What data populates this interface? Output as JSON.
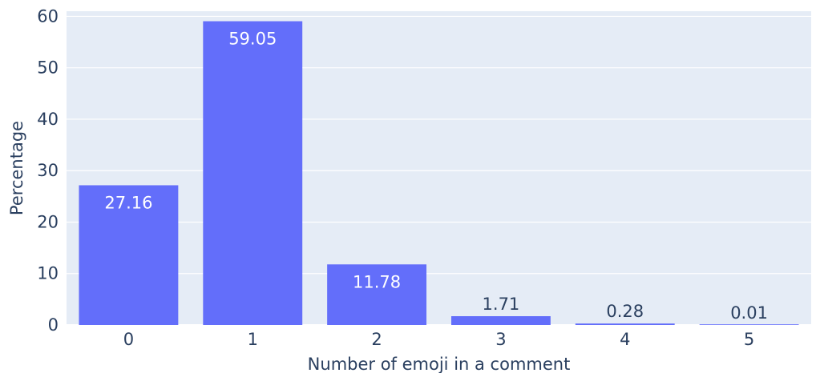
{
  "chart_data": {
    "type": "bar",
    "categories": [
      "0",
      "1",
      "2",
      "3",
      "4",
      "5"
    ],
    "values": [
      27.16,
      59.05,
      11.78,
      1.71,
      0.28,
      0.01
    ],
    "data_labels": [
      "27.16",
      "59.05",
      "11.78",
      "1.71",
      "0.28",
      "0.01"
    ],
    "title": "",
    "xlabel": "Number of emoji in a comment",
    "ylabel": "Percentage",
    "ylim": [
      0,
      61
    ],
    "yticks": [
      0,
      10,
      20,
      30,
      40,
      50,
      60
    ],
    "grid": true,
    "colors": {
      "bar": "#636efa",
      "plot_background": "#e5ecf6",
      "grid": "#ffffff",
      "text": "#2a3f5f",
      "label_inside": "#ffffff"
    }
  }
}
